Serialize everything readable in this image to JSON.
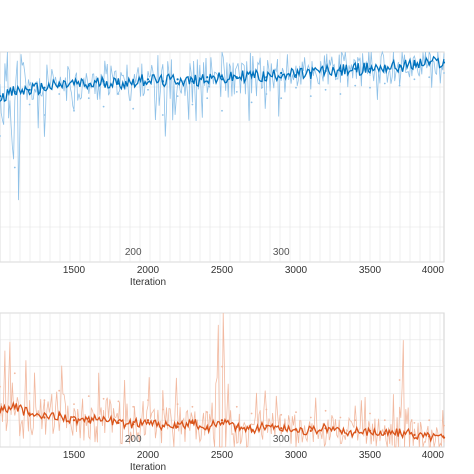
{
  "chart_data": [
    {
      "type": "line",
      "panel": "top",
      "xlabel": "Iteration",
      "ylabel": "",
      "x_ticks": [
        1500,
        2000,
        2500,
        3000,
        3500,
        4000
      ],
      "epoch_labels": [
        "200",
        "300"
      ],
      "xlim": [
        1000,
        4000
      ],
      "ylim": [
        0,
        100
      ],
      "grid": true,
      "series": [
        {
          "style": "smoothed",
          "color": "#0072BD",
          "x": [
            1000,
            1100,
            1200,
            1300,
            1400,
            1500,
            1600,
            1700,
            1800,
            1900,
            2000,
            2100,
            2200,
            2300,
            2400,
            2500,
            2600,
            2700,
            2800,
            2900,
            3000,
            3100,
            3200,
            3300,
            3400,
            3500,
            3600,
            3700,
            3800,
            3900,
            4000
          ],
          "y": [
            79,
            81,
            82,
            83,
            84,
            85,
            84,
            86,
            85,
            86,
            87,
            86,
            87,
            86,
            88,
            87,
            88,
            89,
            88,
            90,
            89,
            90,
            91,
            91,
            92,
            92,
            93,
            93,
            94,
            95,
            95
          ]
        },
        {
          "style": "raw",
          "color": "#8EC1E8",
          "x": [
            1000,
            1100,
            1200,
            1300,
            1400,
            1500,
            1600,
            1700,
            1800,
            1900,
            2000,
            2100,
            2200,
            2300,
            2400,
            2500,
            2600,
            2700,
            2800,
            2900,
            3000,
            3100,
            3200,
            3300,
            3400,
            3500,
            3600,
            3700,
            3800,
            3900,
            4000
          ],
          "y": [
            60,
            45,
            75,
            70,
            80,
            72,
            78,
            74,
            80,
            73,
            82,
            70,
            79,
            75,
            78,
            72,
            81,
            76,
            80,
            78,
            83,
            79,
            82,
            80,
            84,
            83,
            85,
            84,
            87,
            88,
            90
          ]
        }
      ]
    },
    {
      "type": "line",
      "panel": "bottom",
      "xlabel": "Iteration",
      "ylabel": "",
      "x_ticks": [
        1500,
        2000,
        2500,
        3000,
        3500,
        4000
      ],
      "epoch_labels": [
        "200",
        "300"
      ],
      "xlim": [
        1000,
        4000
      ],
      "ylim": [
        0,
        1
      ],
      "grid": true,
      "series": [
        {
          "style": "smoothed",
          "color": "#D95319",
          "x": [
            1000,
            1100,
            1200,
            1300,
            1400,
            1500,
            1600,
            1700,
            1800,
            1900,
            2000,
            2100,
            2200,
            2300,
            2400,
            2500,
            2600,
            2700,
            2800,
            2900,
            3000,
            3100,
            3200,
            3300,
            3400,
            3500,
            3600,
            3700,
            3800,
            3900,
            4000
          ],
          "y": [
            0.28,
            0.3,
            0.25,
            0.22,
            0.24,
            0.2,
            0.19,
            0.22,
            0.18,
            0.17,
            0.2,
            0.16,
            0.15,
            0.18,
            0.14,
            0.2,
            0.15,
            0.13,
            0.16,
            0.14,
            0.13,
            0.12,
            0.14,
            0.12,
            0.11,
            0.12,
            0.1,
            0.11,
            0.09,
            0.08,
            0.07
          ]
        },
        {
          "style": "raw",
          "color": "#F2B9A0",
          "x": [
            1000,
            1100,
            1200,
            1300,
            1400,
            1500,
            1600,
            1700,
            1800,
            1900,
            2000,
            2100,
            2200,
            2300,
            2400,
            2500,
            2600,
            2700,
            2800,
            2900,
            3000,
            3100,
            3200,
            3300,
            3400,
            3500,
            3600,
            3700,
            3800,
            3900,
            4000
          ],
          "y": [
            0.45,
            0.55,
            0.4,
            0.35,
            0.42,
            0.32,
            0.38,
            0.36,
            0.34,
            0.3,
            0.35,
            0.28,
            0.32,
            0.3,
            0.26,
            0.6,
            0.3,
            0.25,
            0.28,
            0.24,
            0.26,
            0.22,
            0.27,
            0.22,
            0.2,
            0.25,
            0.2,
            0.5,
            0.18,
            0.2,
            0.16
          ]
        }
      ]
    }
  ]
}
